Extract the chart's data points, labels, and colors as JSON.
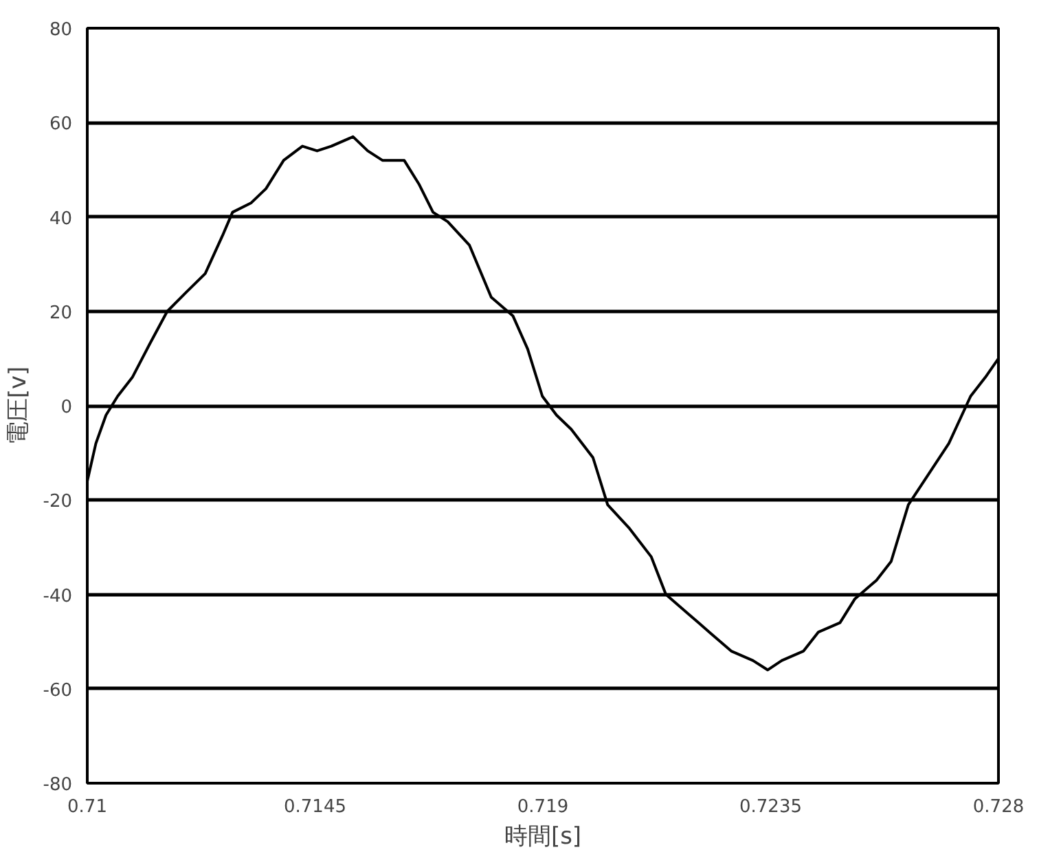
{
  "chart_data": {
    "type": "line",
    "xlabel": "時間[s]",
    "ylabel": "電圧[v]",
    "xlim": [
      0.71,
      0.728
    ],
    "ylim": [
      -80,
      80
    ],
    "xticks": [
      0.71,
      0.7145,
      0.719,
      0.7235,
      0.728
    ],
    "yticks": [
      -80,
      -60,
      -40,
      -20,
      0,
      20,
      40,
      60,
      80
    ],
    "grid": "y",
    "marker": "none",
    "line_style": "solid",
    "series": [
      {
        "color": "#000000",
        "x": [
          0.71,
          0.71017,
          0.71037,
          0.7106,
          0.71089,
          0.71123,
          0.71158,
          0.71195,
          0.71233,
          0.71267,
          0.71287,
          0.71324,
          0.71353,
          0.71388,
          0.71425,
          0.71454,
          0.71482,
          0.71525,
          0.71554,
          0.71583,
          0.71626,
          0.71655,
          0.71683,
          0.71712,
          0.71755,
          0.71798,
          0.71841,
          0.7187,
          0.71899,
          0.71927,
          0.71956,
          0.71999,
          0.72028,
          0.72071,
          0.72114,
          0.72143,
          0.72186,
          0.72229,
          0.72272,
          0.72315,
          0.72344,
          0.72372,
          0.72415,
          0.72444,
          0.72487,
          0.72516,
          0.72559,
          0.72588,
          0.72622,
          0.72659,
          0.72702,
          0.72745,
          0.72774,
          0.728
        ],
        "values": [
          -16,
          -8,
          -2,
          2,
          6,
          13,
          20,
          24,
          28,
          36,
          41,
          43,
          46,
          52,
          55,
          54,
          55,
          57,
          54,
          52,
          52,
          47,
          41,
          39,
          34,
          23,
          19,
          12,
          2,
          -2,
          -5,
          -11,
          -21,
          -26,
          -32,
          -40,
          -44,
          -48,
          -52,
          -54,
          -56,
          -54,
          -52,
          -48,
          -46,
          -41,
          -37,
          -33,
          -21,
          -15,
          -8,
          2,
          6,
          10
        ]
      }
    ]
  }
}
